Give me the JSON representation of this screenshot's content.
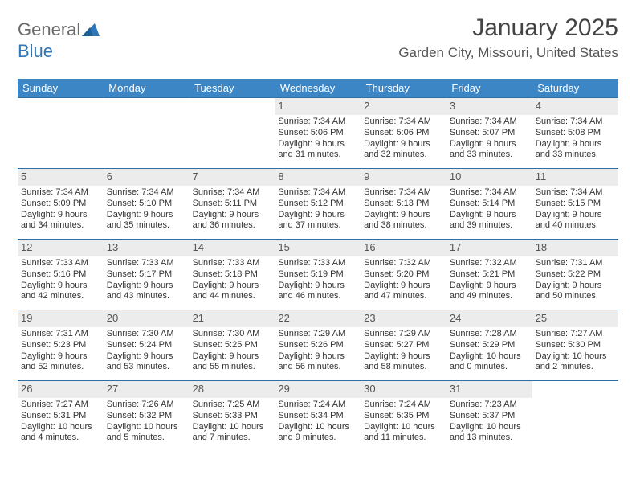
{
  "brand": {
    "word1": "General",
    "word2": "Blue"
  },
  "title": "January 2025",
  "location": "Garden City, Missouri, United States",
  "header_bg": "#3d86c6",
  "day_headers": [
    "Sunday",
    "Monday",
    "Tuesday",
    "Wednesday",
    "Thursday",
    "Friday",
    "Saturday"
  ],
  "weeks": [
    [
      null,
      null,
      null,
      {
        "n": "1",
        "sr": "7:34 AM",
        "ss": "5:06 PM",
        "dl": "9 hours and 31 minutes."
      },
      {
        "n": "2",
        "sr": "7:34 AM",
        "ss": "5:06 PM",
        "dl": "9 hours and 32 minutes."
      },
      {
        "n": "3",
        "sr": "7:34 AM",
        "ss": "5:07 PM",
        "dl": "9 hours and 33 minutes."
      },
      {
        "n": "4",
        "sr": "7:34 AM",
        "ss": "5:08 PM",
        "dl": "9 hours and 33 minutes."
      }
    ],
    [
      {
        "n": "5",
        "sr": "7:34 AM",
        "ss": "5:09 PM",
        "dl": "9 hours and 34 minutes."
      },
      {
        "n": "6",
        "sr": "7:34 AM",
        "ss": "5:10 PM",
        "dl": "9 hours and 35 minutes."
      },
      {
        "n": "7",
        "sr": "7:34 AM",
        "ss": "5:11 PM",
        "dl": "9 hours and 36 minutes."
      },
      {
        "n": "8",
        "sr": "7:34 AM",
        "ss": "5:12 PM",
        "dl": "9 hours and 37 minutes."
      },
      {
        "n": "9",
        "sr": "7:34 AM",
        "ss": "5:13 PM",
        "dl": "9 hours and 38 minutes."
      },
      {
        "n": "10",
        "sr": "7:34 AM",
        "ss": "5:14 PM",
        "dl": "9 hours and 39 minutes."
      },
      {
        "n": "11",
        "sr": "7:34 AM",
        "ss": "5:15 PM",
        "dl": "9 hours and 40 minutes."
      }
    ],
    [
      {
        "n": "12",
        "sr": "7:33 AM",
        "ss": "5:16 PM",
        "dl": "9 hours and 42 minutes."
      },
      {
        "n": "13",
        "sr": "7:33 AM",
        "ss": "5:17 PM",
        "dl": "9 hours and 43 minutes."
      },
      {
        "n": "14",
        "sr": "7:33 AM",
        "ss": "5:18 PM",
        "dl": "9 hours and 44 minutes."
      },
      {
        "n": "15",
        "sr": "7:33 AM",
        "ss": "5:19 PM",
        "dl": "9 hours and 46 minutes."
      },
      {
        "n": "16",
        "sr": "7:32 AM",
        "ss": "5:20 PM",
        "dl": "9 hours and 47 minutes."
      },
      {
        "n": "17",
        "sr": "7:32 AM",
        "ss": "5:21 PM",
        "dl": "9 hours and 49 minutes."
      },
      {
        "n": "18",
        "sr": "7:31 AM",
        "ss": "5:22 PM",
        "dl": "9 hours and 50 minutes."
      }
    ],
    [
      {
        "n": "19",
        "sr": "7:31 AM",
        "ss": "5:23 PM",
        "dl": "9 hours and 52 minutes."
      },
      {
        "n": "20",
        "sr": "7:30 AM",
        "ss": "5:24 PM",
        "dl": "9 hours and 53 minutes."
      },
      {
        "n": "21",
        "sr": "7:30 AM",
        "ss": "5:25 PM",
        "dl": "9 hours and 55 minutes."
      },
      {
        "n": "22",
        "sr": "7:29 AM",
        "ss": "5:26 PM",
        "dl": "9 hours and 56 minutes."
      },
      {
        "n": "23",
        "sr": "7:29 AM",
        "ss": "5:27 PM",
        "dl": "9 hours and 58 minutes."
      },
      {
        "n": "24",
        "sr": "7:28 AM",
        "ss": "5:29 PM",
        "dl": "10 hours and 0 minutes."
      },
      {
        "n": "25",
        "sr": "7:27 AM",
        "ss": "5:30 PM",
        "dl": "10 hours and 2 minutes."
      }
    ],
    [
      {
        "n": "26",
        "sr": "7:27 AM",
        "ss": "5:31 PM",
        "dl": "10 hours and 4 minutes."
      },
      {
        "n": "27",
        "sr": "7:26 AM",
        "ss": "5:32 PM",
        "dl": "10 hours and 5 minutes."
      },
      {
        "n": "28",
        "sr": "7:25 AM",
        "ss": "5:33 PM",
        "dl": "10 hours and 7 minutes."
      },
      {
        "n": "29",
        "sr": "7:24 AM",
        "ss": "5:34 PM",
        "dl": "10 hours and 9 minutes."
      },
      {
        "n": "30",
        "sr": "7:24 AM",
        "ss": "5:35 PM",
        "dl": "10 hours and 11 minutes."
      },
      {
        "n": "31",
        "sr": "7:23 AM",
        "ss": "5:37 PM",
        "dl": "10 hours and 13 minutes."
      },
      null
    ]
  ],
  "labels": {
    "sunrise": "Sunrise:",
    "sunset": "Sunset:",
    "daylight": "Daylight:"
  }
}
